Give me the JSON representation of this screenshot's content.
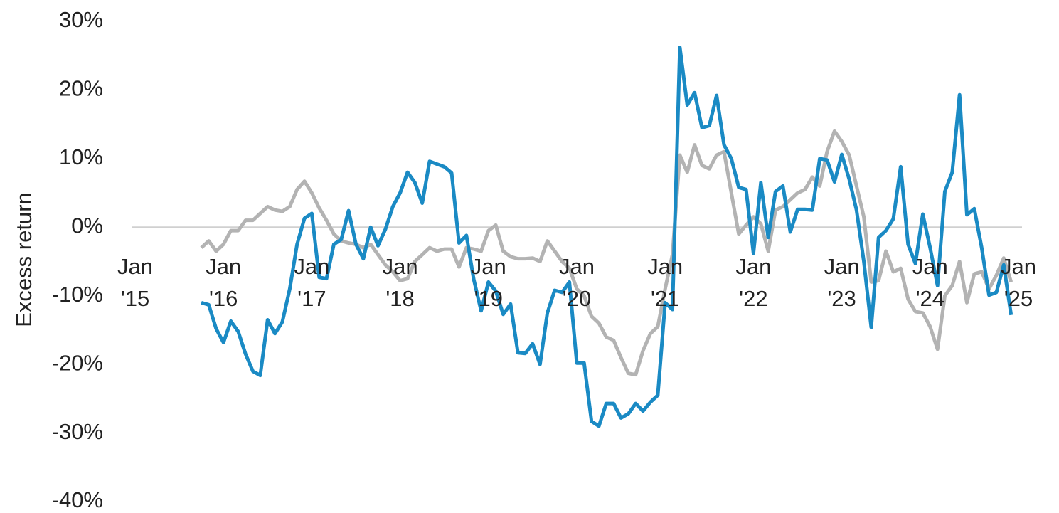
{
  "chart_data": {
    "type": "line",
    "y_label": "Excess return",
    "x": [
      "2015-10",
      "2015-11",
      "2015-12",
      "2016-01",
      "2016-02",
      "2016-03",
      "2016-04",
      "2016-05",
      "2016-06",
      "2016-07",
      "2016-08",
      "2016-09",
      "2016-10",
      "2016-11",
      "2016-12",
      "2017-01",
      "2017-02",
      "2017-03",
      "2017-04",
      "2017-05",
      "2017-06",
      "2017-07",
      "2017-08",
      "2017-09",
      "2017-10",
      "2017-11",
      "2017-12",
      "2018-01",
      "2018-02",
      "2018-03",
      "2018-04",
      "2018-05",
      "2018-06",
      "2018-07",
      "2018-08",
      "2018-09",
      "2018-10",
      "2018-11",
      "2018-12",
      "2019-01",
      "2019-02",
      "2019-03",
      "2019-04",
      "2019-05",
      "2019-06",
      "2019-07",
      "2019-08",
      "2019-09",
      "2019-10",
      "2019-11",
      "2019-12",
      "2020-01",
      "2020-02",
      "2020-03",
      "2020-04",
      "2020-05",
      "2020-06",
      "2020-07",
      "2020-08",
      "2020-09",
      "2020-10",
      "2020-11",
      "2020-12",
      "2021-01",
      "2021-02",
      "2021-03",
      "2021-04",
      "2021-05",
      "2021-06",
      "2021-07",
      "2021-08",
      "2021-09",
      "2021-10",
      "2021-11",
      "2021-12",
      "2022-01",
      "2022-02",
      "2022-03",
      "2022-04",
      "2022-05",
      "2022-06",
      "2022-07",
      "2022-08",
      "2022-09",
      "2022-10",
      "2022-11",
      "2022-12",
      "2023-01",
      "2023-02",
      "2023-03",
      "2023-04",
      "2023-05",
      "2023-06",
      "2023-07",
      "2023-08",
      "2023-09",
      "2023-10",
      "2023-11",
      "2023-12",
      "2024-01",
      "2024-02",
      "2024-03",
      "2024-04",
      "2024-05",
      "2024-06",
      "2024-07",
      "2024-08",
      "2024-09",
      "2024-10",
      "2024-11",
      "2024-12"
    ],
    "series": [
      {
        "color": "#b3b3b3",
        "values": [
          -3,
          -2,
          -3.5,
          -2.5,
          -0.5,
          -0.5,
          1,
          1,
          2,
          3,
          2.5,
          2.3,
          3,
          5.5,
          6.7,
          5,
          2.8,
          1,
          -1,
          -2,
          -2.3,
          -2.5,
          -3,
          -2.5,
          -4,
          -5.5,
          -6.5,
          -7.8,
          -7.5,
          -5,
          -4,
          -3,
          -3.5,
          -3.2,
          -3.2,
          -5.8,
          -3,
          -3.2,
          -3.5,
          -0.5,
          0.3,
          -3.5,
          -4.3,
          -4.6,
          -4.6,
          -4.5,
          -5,
          -2,
          -3.5,
          -5,
          -6,
          -9,
          -10,
          -13,
          -14,
          -16,
          -16.5,
          -19,
          -21.3,
          -21.5,
          -18,
          -15.5,
          -14.5,
          -9,
          -4,
          10.5,
          8,
          12,
          9,
          8.5,
          10.5,
          11,
          5,
          -1,
          0.3,
          1.5,
          0.5,
          -3.5,
          2.5,
          3,
          4,
          5,
          5.5,
          7.3,
          6,
          11,
          14,
          12.5,
          10.5,
          6,
          1.5,
          -8,
          -7.8,
          -3.5,
          -6.5,
          -6,
          -10.5,
          -12.3,
          -12.5,
          -14.5,
          -17.8,
          -10,
          -8.5,
          -5,
          -11,
          -6.8,
          -6.5,
          -9,
          -7,
          -4.5,
          -8
        ]
      },
      {
        "color": "#1a8ac4",
        "values": [
          -11,
          -11.3,
          -14.8,
          -16.8,
          -13.7,
          -15.2,
          -18.5,
          -21,
          -21.6,
          -13.5,
          -15.5,
          -13.8,
          -9,
          -2.5,
          1.3,
          2,
          -7.3,
          -7.5,
          -2.5,
          -1.8,
          2.4,
          -2.5,
          -4.6,
          0,
          -2.7,
          -0.3,
          3,
          5,
          8,
          6.5,
          3.5,
          9.6,
          9.2,
          8.8,
          7.9,
          -2.3,
          -1.2,
          -7.6,
          -12.2,
          -8,
          -9.3,
          -12.7,
          -11.2,
          -18.3,
          -18.4,
          -17,
          -20,
          -12.5,
          -9.2,
          -9.5,
          -8,
          -19.8,
          -19.8,
          -28.3,
          -29,
          -25.7,
          -25.7,
          -27.8,
          -27.2,
          -25.7,
          -26.8,
          -25.5,
          -24.5,
          -11,
          -12,
          26.2,
          17.8,
          19.6,
          14.5,
          14.8,
          19.2,
          12,
          10,
          5.8,
          5.5,
          -3.8,
          6.5,
          -1.5,
          5.2,
          6,
          -0.7,
          2.6,
          2.6,
          2.5,
          10,
          9.8,
          6.6,
          10.6,
          7,
          2.5,
          -5,
          -14.6,
          -1.5,
          -0.5,
          1.2,
          8.8,
          -2.5,
          -5.3,
          1.9,
          -3,
          -8.5,
          5.2,
          8,
          19.3,
          1.8,
          2.7,
          -3,
          -9.9,
          -9.5,
          -5.5,
          -12.8
        ]
      }
    ],
    "xlim": [
      "2015-01",
      "2025-01"
    ],
    "xticks": [
      {
        "value": "2015-01",
        "label": "Jan '15"
      },
      {
        "value": "2016-01",
        "label": "Jan '16"
      },
      {
        "value": "2017-01",
        "label": "Jan '17"
      },
      {
        "value": "2018-01",
        "label": "Jan '18"
      },
      {
        "value": "2019-01",
        "label": "Jan '19"
      },
      {
        "value": "2020-01",
        "label": "Jan '20"
      },
      {
        "value": "2021-01",
        "label": "Jan '21"
      },
      {
        "value": "2022-01",
        "label": "Jan '22"
      },
      {
        "value": "2023-01",
        "label": "Jan '23"
      },
      {
        "value": "2024-01",
        "label": "Jan '24"
      },
      {
        "value": "2025-01",
        "label": "Jan '25"
      }
    ],
    "ylim": [
      -40,
      30
    ],
    "yticks": [
      {
        "value": 30,
        "label": "30%"
      },
      {
        "value": 20,
        "label": "20%"
      },
      {
        "value": 10,
        "label": "10%"
      },
      {
        "value": 0,
        "label": "0%"
      },
      {
        "value": -10,
        "label": "-10%"
      },
      {
        "value": -20,
        "label": "-20%"
      },
      {
        "value": -30,
        "label": "-30%"
      },
      {
        "value": -40,
        "label": "-40%"
      }
    ],
    "zero_line": true
  }
}
